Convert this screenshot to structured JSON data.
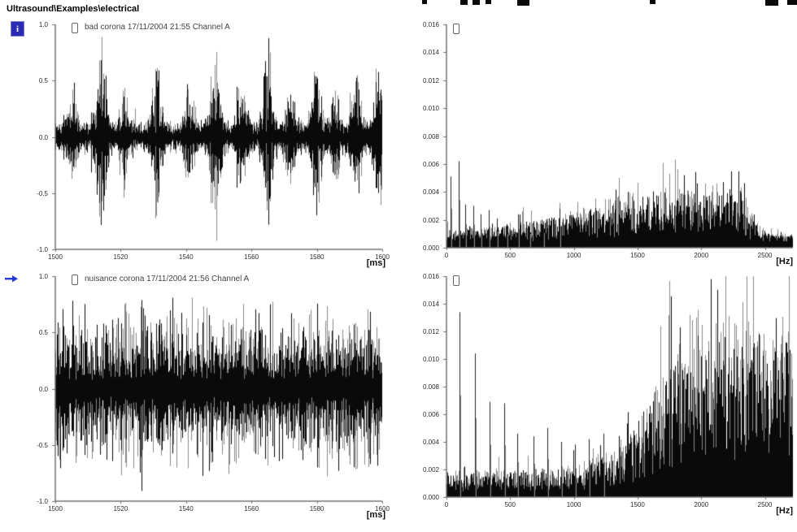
{
  "header": {
    "breadcrumb": "Ultrasound\\Examples\\electrical"
  },
  "icons": {
    "info_icon_glyph": "i",
    "arrow_marker": "right-arrow",
    "trace_box": "record-box"
  },
  "colors": {
    "trace_black": "#0a0a0a",
    "trace_gray": "#878787",
    "axis": "#707070",
    "spike": "#222222",
    "accent_blue": "#2b2bb4",
    "arrow_blue": "#2438d8"
  },
  "chart_data": [
    {
      "type": "line",
      "title": "bad corona 17/11/2004 21:55 Channel A",
      "xunit": "[ms]",
      "xlim": [
        1500,
        1600
      ],
      "xticks": [
        1500,
        1520,
        1540,
        1560,
        1580,
        1600
      ],
      "ylim": [
        -1,
        1
      ],
      "yticks": [
        "1.0",
        "0.5",
        "0.0",
        "-0.5",
        "-1.0"
      ],
      "grid": false,
      "signal": {
        "kind": "impulsive_bursts",
        "noise_floor": 0.08,
        "bursts": [
          {
            "ms": 1505,
            "amp": 0.38
          },
          {
            "ms": 1514,
            "amp": 0.95
          },
          {
            "ms": 1521,
            "amp": 0.42
          },
          {
            "ms": 1531,
            "amp": 0.7
          },
          {
            "ms": 1541,
            "amp": 0.38
          },
          {
            "ms": 1549,
            "amp": 0.92
          },
          {
            "ms": 1557,
            "amp": 0.4
          },
          {
            "ms": 1565,
            "amp": 0.82
          },
          {
            "ms": 1572,
            "amp": 0.35
          },
          {
            "ms": 1580,
            "amp": 0.62
          },
          {
            "ms": 1586,
            "amp": 0.35
          },
          {
            "ms": 1592,
            "amp": 0.58
          },
          {
            "ms": 1599,
            "amp": 0.6
          }
        ]
      }
    },
    {
      "type": "area",
      "title": "",
      "xunit": "[Hz]",
      "xlim": [
        0,
        2720
      ],
      "xticks": [
        0,
        500,
        1000,
        1500,
        2000,
        2500
      ],
      "ylim": [
        0,
        0.016
      ],
      "yticks": [
        "0.016",
        "0.014",
        "0.012",
        "0.010",
        "0.008",
        "0.006",
        "0.004",
        "0.002",
        "0.000"
      ],
      "grid": false,
      "spectrum": {
        "envelope": [
          [
            0,
            0.0009
          ],
          [
            300,
            0.001
          ],
          [
            600,
            0.0013
          ],
          [
            900,
            0.0017
          ],
          [
            1200,
            0.0022
          ],
          [
            1500,
            0.0028
          ],
          [
            1800,
            0.003
          ],
          [
            2050,
            0.0029
          ],
          [
            2200,
            0.0036
          ],
          [
            2320,
            0.003
          ],
          [
            2420,
            0.0013
          ],
          [
            2550,
            0.0007
          ],
          [
            2720,
            0.0006
          ]
        ],
        "spikes": [
          [
            30,
            0.0051
          ],
          [
            95,
            0.0062
          ],
          [
            150,
            0.0031
          ],
          [
            210,
            0.003
          ],
          [
            265,
            0.0024
          ],
          [
            330,
            0.0027
          ],
          [
            395,
            0.0021
          ],
          [
            470,
            0.0017
          ],
          [
            560,
            0.0024
          ],
          [
            650,
            0.0018
          ],
          [
            760,
            0.0019
          ],
          [
            890,
            0.0028
          ]
        ]
      }
    },
    {
      "type": "line",
      "title": "nuisance corona 17/11/2004 21:56 Channel A",
      "xunit": "[ms]",
      "xlim": [
        1500,
        1600
      ],
      "xticks": [
        1500,
        1520,
        1540,
        1560,
        1580,
        1600
      ],
      "ylim": [
        -1,
        1
      ],
      "yticks": [
        "1.0",
        "0.5",
        "0.0",
        "-0.5",
        "-1.0"
      ],
      "grid": false,
      "signal": {
        "kind": "continuous_noise",
        "noise_floor": 0.45,
        "peak": 1.0,
        "bursts": []
      }
    },
    {
      "type": "area",
      "title": "",
      "xunit": "[Hz]",
      "xlim": [
        0,
        2720
      ],
      "xticks": [
        0,
        500,
        1000,
        1500,
        2000,
        2500
      ],
      "ylim": [
        0,
        0.016
      ],
      "yticks": [
        "0.016",
        "0.014",
        "0.012",
        "0.010",
        "0.008",
        "0.006",
        "0.004",
        "0.002",
        "0.000"
      ],
      "grid": false,
      "spectrum": {
        "envelope": [
          [
            0,
            0.0013
          ],
          [
            400,
            0.0013
          ],
          [
            800,
            0.0014
          ],
          [
            1100,
            0.0018
          ],
          [
            1300,
            0.0024
          ],
          [
            1500,
            0.0038
          ],
          [
            1650,
            0.0055
          ],
          [
            1800,
            0.0075
          ],
          [
            1950,
            0.0095
          ],
          [
            2050,
            0.008
          ],
          [
            2200,
            0.009
          ],
          [
            2350,
            0.0085
          ],
          [
            2500,
            0.008
          ],
          [
            2720,
            0.009
          ]
        ],
        "spikes": [
          [
            100,
            0.0134
          ],
          [
            225,
            0.0104
          ],
          [
            340,
            0.0069
          ],
          [
            455,
            0.0068
          ],
          [
            555,
            0.0046
          ],
          [
            680,
            0.0044
          ],
          [
            790,
            0.005
          ],
          [
            900,
            0.004
          ],
          [
            1010,
            0.0038
          ],
          [
            1120,
            0.0042
          ],
          [
            1230,
            0.0046
          ]
        ]
      }
    }
  ]
}
